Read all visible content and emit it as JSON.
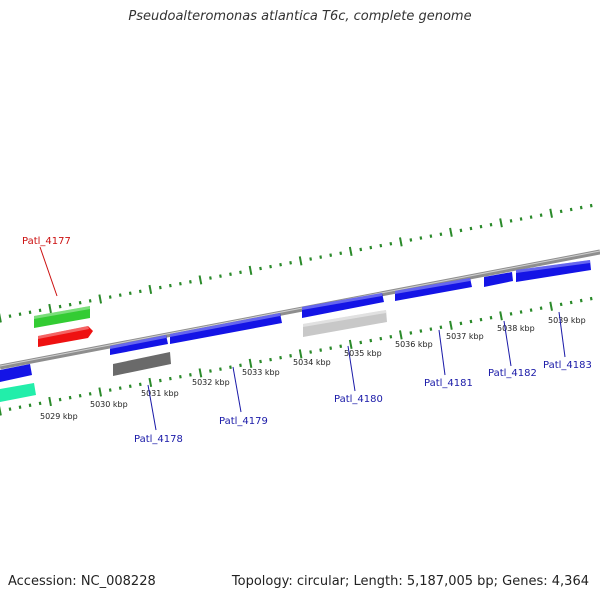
{
  "header": {
    "title": "Pseudoalteromonas atlantica T6c, complete genome"
  },
  "footer": {
    "accession": "Accession: NC_008228",
    "topology": "Topology: circular; Length: 5,187,005 bp; Genes: 4,364"
  },
  "colors": {
    "forward_gene": "#1414e6",
    "reverse_dark": "#6a6a6a",
    "reverse_light": "#c8c8c8",
    "green_gene": "#33cc33",
    "red_gene": "#ee1111",
    "teal_gene": "#22eeaa",
    "tick": "#2a8a2a",
    "backbone": "#8e8e8e",
    "blue_label": "#1a1aa8",
    "red_label": "#cc1111"
  },
  "axis": {
    "kbp_labels": [
      "5029 kbp",
      "5030 kbp",
      "5031 kbp",
      "5032 kbp",
      "5033 kbp",
      "5034 kbp",
      "5035 kbp",
      "5036 kbp",
      "5037 kbp",
      "5038 kbp",
      "5039 kbp"
    ]
  },
  "gene_labels": [
    {
      "name": "Patl_4177",
      "color": "red"
    },
    {
      "name": "Patl_4178",
      "color": "blue"
    },
    {
      "name": "Patl_4179",
      "color": "blue"
    },
    {
      "name": "Patl_4180",
      "color": "blue"
    },
    {
      "name": "Patl_4181",
      "color": "blue"
    },
    {
      "name": "Patl_4182",
      "color": "blue"
    },
    {
      "name": "Patl_4183",
      "color": "blue"
    }
  ]
}
